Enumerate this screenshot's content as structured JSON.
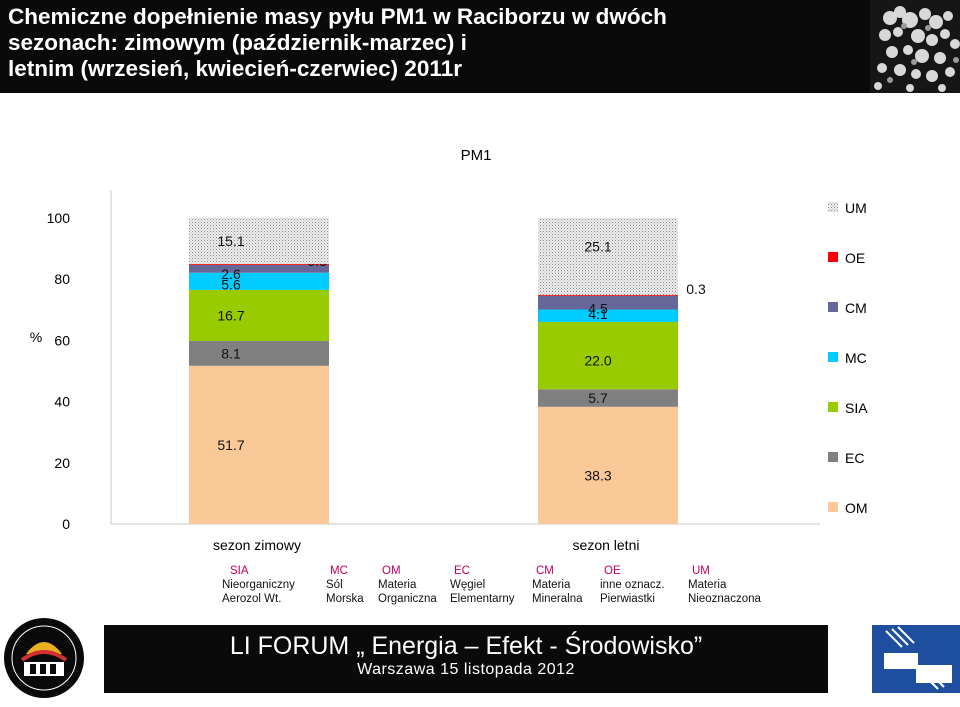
{
  "header": {
    "title_lines": [
      "Chemiczne dopełnienie masy pyłu PM1 w Raciborzu w dwóch",
      "sezonach: zimowym (październik-marzec) i",
      "letnim (wrzesień, kwiecień-czerwiec) 2011r"
    ],
    "photo_icon": "particle-micrograph-icon"
  },
  "chart_data": {
    "type": "bar",
    "stacked": true,
    "title": "PM1",
    "ylabel": "%",
    "ylim": [
      0,
      100
    ],
    "yticks": [
      0,
      20,
      40,
      60,
      80,
      100
    ],
    "categories": [
      "sezon zimowy",
      "sezon letni"
    ],
    "series": [
      {
        "name": "OM",
        "color": "#fbc898",
        "values": [
          51.7,
          38.3
        ]
      },
      {
        "name": "EC",
        "color": "#808080",
        "values": [
          8.1,
          5.7
        ]
      },
      {
        "name": "SIA",
        "color": "#99cc00",
        "values": [
          16.7,
          22.0
        ]
      },
      {
        "name": "MC",
        "color": "#00ccff",
        "values": [
          5.6,
          4.1
        ]
      },
      {
        "name": "CM",
        "color": "#666699",
        "values": [
          2.6,
          4.5
        ]
      },
      {
        "name": "OE",
        "color": "#ff0000",
        "values": [
          0.3,
          0.3
        ]
      },
      {
        "name": "UM",
        "color": "#dcdcdc",
        "pattern": "dotted",
        "values": [
          15.1,
          25.1
        ]
      }
    ],
    "legend_order": [
      "UM",
      "OE",
      "CM",
      "MC",
      "SIA",
      "EC",
      "OM"
    ],
    "legend_placement": "right",
    "grid": false
  },
  "legend_table": [
    {
      "code": "SIA",
      "desc1": "Nieorganiczny",
      "desc2": "Aerozol Wt."
    },
    {
      "code": "MC",
      "desc1": "Sól",
      "desc2": "Morska"
    },
    {
      "code": "OM",
      "desc1": "Materia",
      "desc2": "Organiczna"
    },
    {
      "code": "EC",
      "desc1": "Węgiel",
      "desc2": "Elementarny"
    },
    {
      "code": "CM",
      "desc1": "Materia",
      "desc2": "Mineralna"
    },
    {
      "code": "OE",
      "desc1": "inne oznacz.",
      "desc2": "Pierwiastki"
    },
    {
      "code": "UM",
      "desc1": "Materia",
      "desc2": "Nieoznaczona"
    }
  ],
  "footer": {
    "title": "LI FORUM „ Energia – Efekt - Środowisko”",
    "subtitle": "Warszawa 15 listopada 2012"
  },
  "logos": {
    "left": "pan-institute-logo",
    "right": "imgw-logo"
  }
}
